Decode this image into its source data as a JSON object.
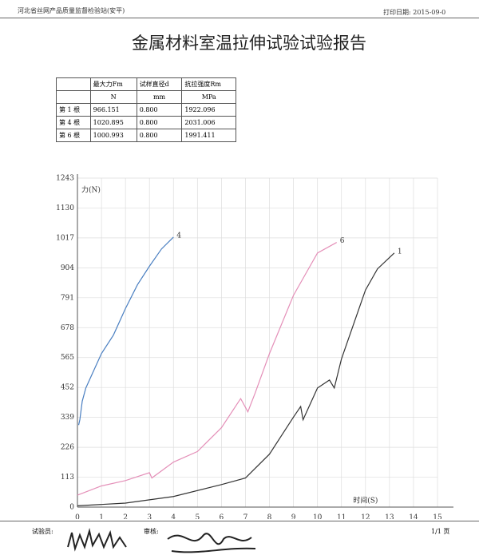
{
  "header": {
    "org": "河北省丝网产品质量监督检验站(安平)",
    "print_date": "打印日期: 2015-09-0"
  },
  "title": "金属材料室温拉伸试验试验报告",
  "table": {
    "header": [
      "",
      "最大力Fm",
      "试样直径d",
      "抗拉强度Rm"
    ],
    "units": [
      "",
      "N",
      "mm",
      "MPa"
    ],
    "rows": [
      [
        "第 1 根",
        "966.151",
        "0.800",
        "1922.096"
      ],
      [
        "第 4 根",
        "1020.895",
        "0.800",
        "2031.006"
      ],
      [
        "第 6 根",
        "1000.993",
        "0.800",
        "1991.411"
      ]
    ]
  },
  "chart_data": {
    "type": "line",
    "ylabel": "力(N)",
    "xlabel": "时间(S)",
    "xlim": [
      0,
      15
    ],
    "xticks": [
      0,
      1,
      2,
      3,
      4,
      5,
      6,
      7,
      8,
      9,
      10,
      11,
      12,
      13,
      14,
      15
    ],
    "ylim": [
      0,
      1243
    ],
    "yticks": [
      0,
      113,
      226,
      339,
      452,
      565,
      678,
      791,
      904,
      1017,
      1130,
      1243
    ],
    "grid": true,
    "series": [
      {
        "name": "4",
        "color": "#4a7fc1",
        "x": [
          0.05,
          0.1,
          0.2,
          0.35,
          0.6,
          1.0,
          1.5,
          2.0,
          2.5,
          3.0,
          3.5,
          4.0
        ],
        "values": [
          310,
          330,
          400,
          450,
          500,
          580,
          650,
          750,
          840,
          910,
          975,
          1020
        ]
      },
      {
        "name": "6",
        "color": "#e48fb8",
        "x": [
          0,
          1,
          2,
          3,
          3.1,
          4,
          5,
          6,
          6.8,
          7.1,
          7.4,
          8,
          9,
          10,
          10.8
        ],
        "values": [
          45,
          80,
          100,
          130,
          110,
          170,
          210,
          300,
          410,
          360,
          430,
          580,
          800,
          960,
          1000
        ]
      },
      {
        "name": "1",
        "color": "#333333",
        "x": [
          0,
          2,
          4,
          6,
          7,
          8,
          9,
          9.3,
          9.4,
          10,
          10.5,
          10.7,
          11,
          12,
          12.5,
          13.2
        ],
        "values": [
          5,
          15,
          40,
          85,
          110,
          200,
          340,
          380,
          330,
          450,
          480,
          450,
          560,
          820,
          900,
          960
        ]
      }
    ]
  },
  "footer": {
    "tester": "试验员:",
    "reviewer": "审核:",
    "page": "1/1 页"
  }
}
